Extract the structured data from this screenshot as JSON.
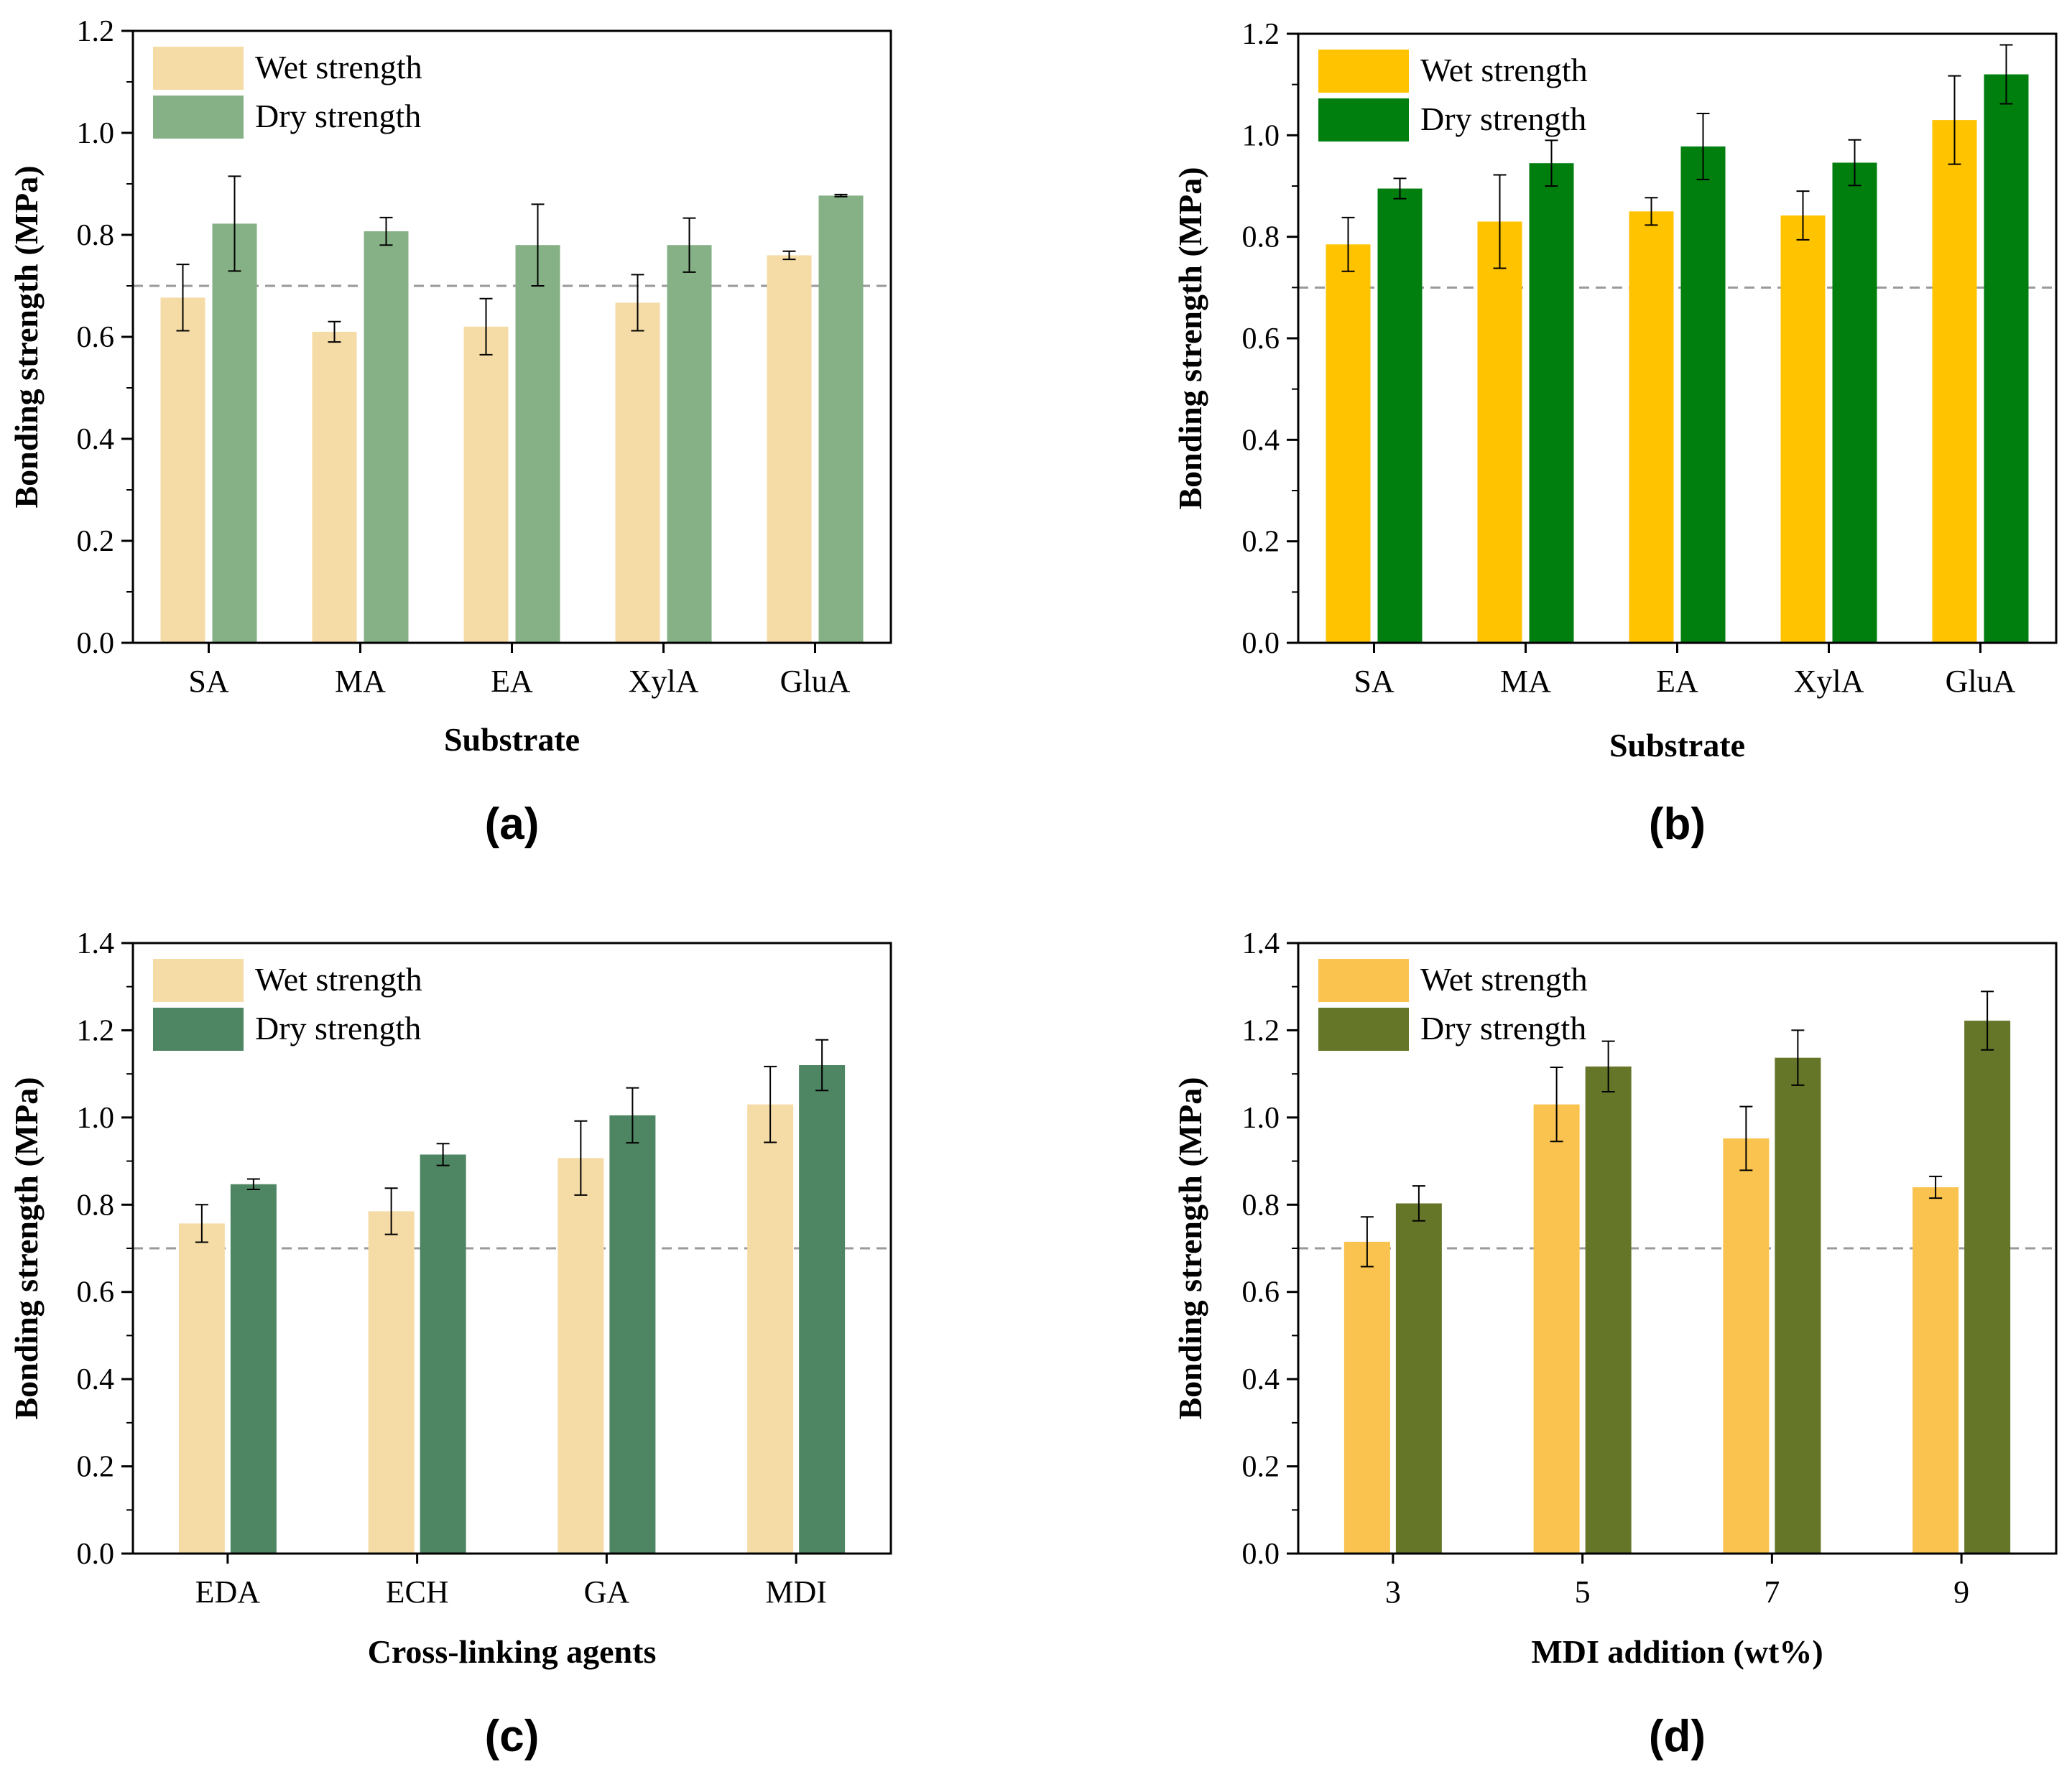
{
  "figure": {
    "panels": [
      "a",
      "b",
      "c",
      "d"
    ]
  },
  "chart_data": [
    {
      "id": "a",
      "type": "bar",
      "panel_label": "(a)",
      "xlabel": "Substrate",
      "ylabel": "Bonding strength (MPa)",
      "categories": [
        "SA",
        "MA",
        "EA",
        "XylA",
        "GluA"
      ],
      "ylim": [
        0,
        1.2
      ],
      "yticks": [
        0.0,
        0.2,
        0.4,
        0.6,
        0.8,
        1.0,
        1.2
      ],
      "ytick_labels": [
        "0.0",
        "0.2",
        "0.4",
        "0.6",
        "0.8",
        "1.0",
        "1.2"
      ],
      "reference_line": 0.7,
      "legend_position": "top-left",
      "series": [
        {
          "name": "Wet strength",
          "color": "#F5DBA6",
          "values": [
            0.677,
            0.61,
            0.62,
            0.667,
            0.76
          ],
          "errors": [
            0.065,
            0.02,
            0.055,
            0.055,
            0.008
          ]
        },
        {
          "name": "Dry strength",
          "color": "#86B186",
          "values": [
            0.822,
            0.807,
            0.78,
            0.78,
            0.877
          ],
          "errors": [
            0.093,
            0.027,
            0.08,
            0.053,
            0.002
          ]
        }
      ]
    },
    {
      "id": "b",
      "type": "bar",
      "panel_label": "(b)",
      "xlabel": "Substrate",
      "ylabel": "Bonding strength (MPa)",
      "categories": [
        "SA",
        "MA",
        "EA",
        "XylA",
        "GluA"
      ],
      "ylim": [
        0,
        1.2
      ],
      "yticks": [
        0.0,
        0.2,
        0.4,
        0.6,
        0.8,
        1.0,
        1.2
      ],
      "ytick_labels": [
        "0.0",
        "0.2",
        "0.4",
        "0.6",
        "0.8",
        "1.0",
        "1.2"
      ],
      "reference_line": 0.7,
      "legend_position": "top-left",
      "series": [
        {
          "name": "Wet strength",
          "color": "#FFC300",
          "values": [
            0.785,
            0.83,
            0.85,
            0.842,
            1.03
          ],
          "errors": [
            0.053,
            0.092,
            0.027,
            0.048,
            0.087
          ]
        },
        {
          "name": "Dry strength",
          "color": "#007F0F",
          "values": [
            0.895,
            0.945,
            0.978,
            0.946,
            1.12
          ],
          "errors": [
            0.02,
            0.045,
            0.065,
            0.045,
            0.058
          ]
        }
      ]
    },
    {
      "id": "c",
      "type": "bar",
      "panel_label": "(c)",
      "xlabel": "Cross-linking agents",
      "ylabel": "Bonding strength (MPa)",
      "categories": [
        "EDA",
        "ECH",
        "GA",
        "MDI"
      ],
      "ylim": [
        0,
        1.4
      ],
      "yticks": [
        0.0,
        0.2,
        0.4,
        0.6,
        0.8,
        1.0,
        1.2,
        1.4
      ],
      "ytick_labels": [
        "0.0",
        "0.2",
        "0.4",
        "0.6",
        "0.8",
        "1.0",
        "1.2",
        "1.4"
      ],
      "reference_line": 0.7,
      "legend_position": "top-left",
      "series": [
        {
          "name": "Wet strength",
          "color": "#F5DBA6",
          "values": [
            0.757,
            0.785,
            0.907,
            1.03
          ],
          "errors": [
            0.043,
            0.053,
            0.085,
            0.087
          ]
        },
        {
          "name": "Dry strength",
          "color": "#4E8563",
          "values": [
            0.847,
            0.915,
            1.005,
            1.12
          ],
          "errors": [
            0.012,
            0.025,
            0.063,
            0.058
          ]
        }
      ]
    },
    {
      "id": "d",
      "type": "bar",
      "panel_label": "(d)",
      "xlabel": "MDI addition (wt%)",
      "ylabel": "Bonding strength (MPa)",
      "categories": [
        "3",
        "5",
        "7",
        "9"
      ],
      "ylim": [
        0,
        1.4
      ],
      "yticks": [
        0.0,
        0.2,
        0.4,
        0.6,
        0.8,
        1.0,
        1.2,
        1.4
      ],
      "ytick_labels": [
        "0.0",
        "0.2",
        "0.4",
        "0.6",
        "0.8",
        "1.0",
        "1.2",
        "1.4"
      ],
      "reference_line": 0.7,
      "legend_position": "top-left",
      "series": [
        {
          "name": "Wet strength",
          "color": "#FAC34F",
          "values": [
            0.715,
            1.03,
            0.952,
            0.84
          ],
          "errors": [
            0.057,
            0.085,
            0.073,
            0.025
          ]
        },
        {
          "name": "Dry strength",
          "color": "#667629",
          "values": [
            0.803,
            1.117,
            1.137,
            1.222
          ],
          "errors": [
            0.04,
            0.058,
            0.063,
            0.067
          ]
        }
      ]
    }
  ]
}
